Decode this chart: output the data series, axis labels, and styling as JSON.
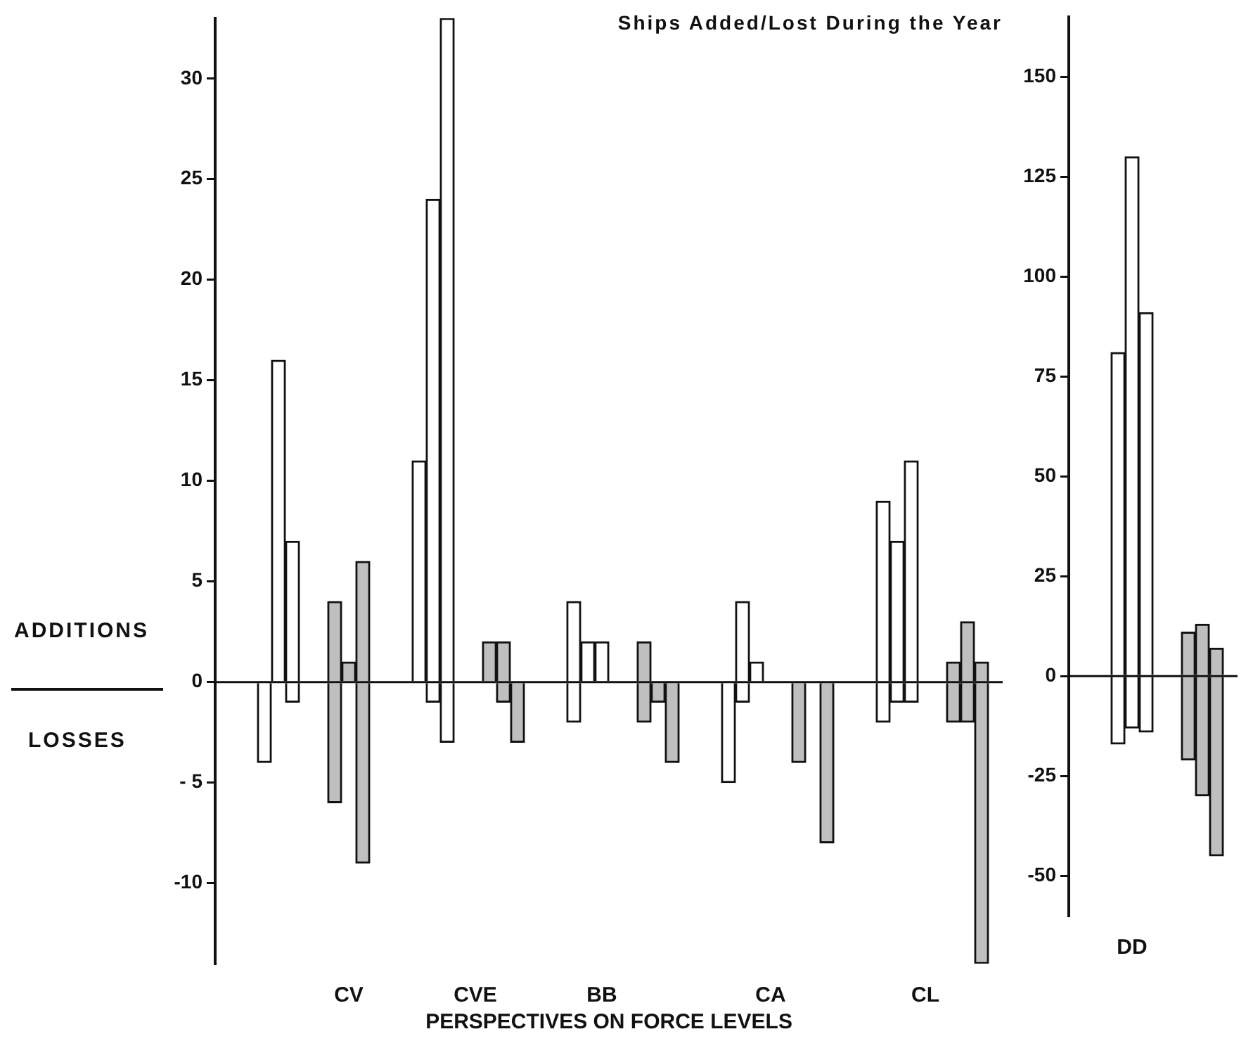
{
  "chart_data": [
    {
      "type": "bar",
      "title": "Ships Added/Lost During the Year",
      "xlabel": "PERSPECTIVES ON FORCE LEVELS",
      "annotations": [
        "ADDITIONS",
        "LOSSES"
      ],
      "categories": [
        null,
        null,
        null,
        null,
        null,
        null,
        null,
        null,
        null,
        "CV",
        null,
        null,
        null,
        null,
        null,
        null,
        null,
        null,
        "CVE",
        null,
        null,
        null,
        null,
        null,
        null,
        null,
        null,
        "BB",
        null,
        null,
        null,
        null,
        null,
        null,
        null,
        null,
        null,
        null,
        null,
        "CA",
        null,
        null,
        null,
        null,
        null,
        null,
        null,
        null,
        null,
        null,
        "CL",
        null,
        null,
        null,
        null,
        null
      ],
      "stacked": true,
      "ylim": [
        -14,
        33
      ],
      "yticks": [
        -10,
        {
          "value": -5,
          "label": "- 5"
        },
        0,
        5,
        10,
        15,
        20,
        25,
        30
      ],
      "series": [
        {
          "values": [
            null,
            null,
            null,
            null,
            16,
            7,
            null,
            null,
            4,
            1,
            6,
            null,
            null,
            null,
            11,
            24,
            33,
            null,
            null,
            2,
            2,
            null,
            null,
            null,
            null,
            4,
            2,
            2,
            null,
            null,
            2,
            null,
            null,
            null,
            null,
            null,
            null,
            4,
            1,
            null,
            null,
            null,
            null,
            null,
            null,
            null,
            null,
            9,
            7,
            11,
            null,
            null,
            1,
            3,
            1,
            null
          ],
          "colors": [
            "#ffffff",
            "#ffffff",
            "#ffffff",
            "#ffffff",
            "#ffffff",
            "#ffffff",
            "#ffffff",
            "#ffffff",
            "#bfbfbf",
            "#bfbfbf",
            "#bfbfbf",
            "#ffffff",
            "#ffffff",
            "#ffffff",
            "#ffffff",
            "#ffffff",
            "#ffffff",
            "#ffffff",
            "#ffffff",
            "#bfbfbf",
            "#bfbfbf",
            "#bfbfbf",
            "#ffffff",
            "#ffffff",
            "#ffffff",
            "#ffffff",
            "#ffffff",
            "#ffffff",
            "#ffffff",
            "#ffffff",
            "#bfbfbf",
            "#bfbfbf",
            "#bfbfbf",
            "#ffffff",
            "#ffffff",
            "#ffffff",
            "#ffffff",
            "#ffffff",
            "#ffffff",
            "#ffffff",
            "#ffffff",
            "#bfbfbf",
            "#bfbfbf",
            "#bfbfbf",
            "#ffffff",
            "#ffffff",
            "#ffffff",
            "#ffffff",
            "#ffffff",
            "#ffffff",
            "#ffffff",
            "#ffffff",
            "#bfbfbf",
            "#bfbfbf",
            "#bfbfbf",
            "#ffffff"
          ]
        },
        {
          "values": [
            null,
            null,
            null,
            -4,
            null,
            -1,
            null,
            null,
            -6,
            null,
            -9,
            null,
            null,
            null,
            null,
            -1,
            -3,
            null,
            null,
            null,
            -1,
            -3,
            null,
            null,
            null,
            -2,
            null,
            null,
            null,
            null,
            -2,
            -1,
            -4,
            null,
            null,
            null,
            -5,
            -1,
            null,
            null,
            null,
            -4,
            null,
            -8,
            null,
            null,
            null,
            -2,
            -1,
            -1,
            null,
            null,
            -2,
            -2,
            -14,
            null
          ],
          "colors": [
            "#ffffff",
            "#ffffff",
            "#ffffff",
            "#ffffff",
            "#ffffff",
            "#ffffff",
            "#ffffff",
            "#ffffff",
            "#bfbfbf",
            "#bfbfbf",
            "#bfbfbf",
            "#ffffff",
            "#ffffff",
            "#ffffff",
            "#ffffff",
            "#ffffff",
            "#ffffff",
            "#ffffff",
            "#ffffff",
            "#bfbfbf",
            "#bfbfbf",
            "#bfbfbf",
            "#ffffff",
            "#ffffff",
            "#ffffff",
            "#ffffff",
            "#ffffff",
            "#ffffff",
            "#ffffff",
            "#ffffff",
            "#bfbfbf",
            "#bfbfbf",
            "#bfbfbf",
            "#ffffff",
            "#ffffff",
            "#ffffff",
            "#ffffff",
            "#ffffff",
            "#ffffff",
            "#ffffff",
            "#ffffff",
            "#bfbfbf",
            "#bfbfbf",
            "#bfbfbf",
            "#ffffff",
            "#ffffff",
            "#ffffff",
            "#ffffff",
            "#ffffff",
            "#ffffff",
            "#ffffff",
            "#ffffff",
            "#bfbfbf",
            "#bfbfbf",
            "#bfbfbf",
            "#ffffff"
          ]
        }
      ]
    },
    {
      "type": "bar",
      "categories": [
        null,
        null,
        null,
        null,
        "DD",
        null,
        null,
        null,
        null,
        null,
        null,
        null
      ],
      "stacked": true,
      "ylim": [
        -60,
        165
      ],
      "yticks": [
        -50,
        -25,
        0,
        25,
        50,
        75,
        100,
        125,
        150
      ],
      "series": [
        {
          "values": [
            null,
            null,
            null,
            81,
            130,
            91,
            null,
            null,
            11,
            13,
            7,
            null
          ],
          "colors": [
            "#ffffff",
            "#ffffff",
            "#ffffff",
            "#ffffff",
            "#ffffff",
            "#ffffff",
            "#ffffff",
            "#ffffff",
            "#bfbfbf",
            "#bfbfbf",
            "#bfbfbf",
            "#ffffff"
          ]
        },
        {
          "values": [
            null,
            null,
            null,
            -17,
            -13,
            -14,
            null,
            null,
            -21,
            -30,
            -45,
            null
          ],
          "colors": [
            "#ffffff",
            "#ffffff",
            "#ffffff",
            "#ffffff",
            "#ffffff",
            "#ffffff",
            "#ffffff",
            "#ffffff",
            "#bfbfbf",
            "#bfbfbf",
            "#bfbfbf",
            "#ffffff"
          ]
        }
      ]
    }
  ]
}
